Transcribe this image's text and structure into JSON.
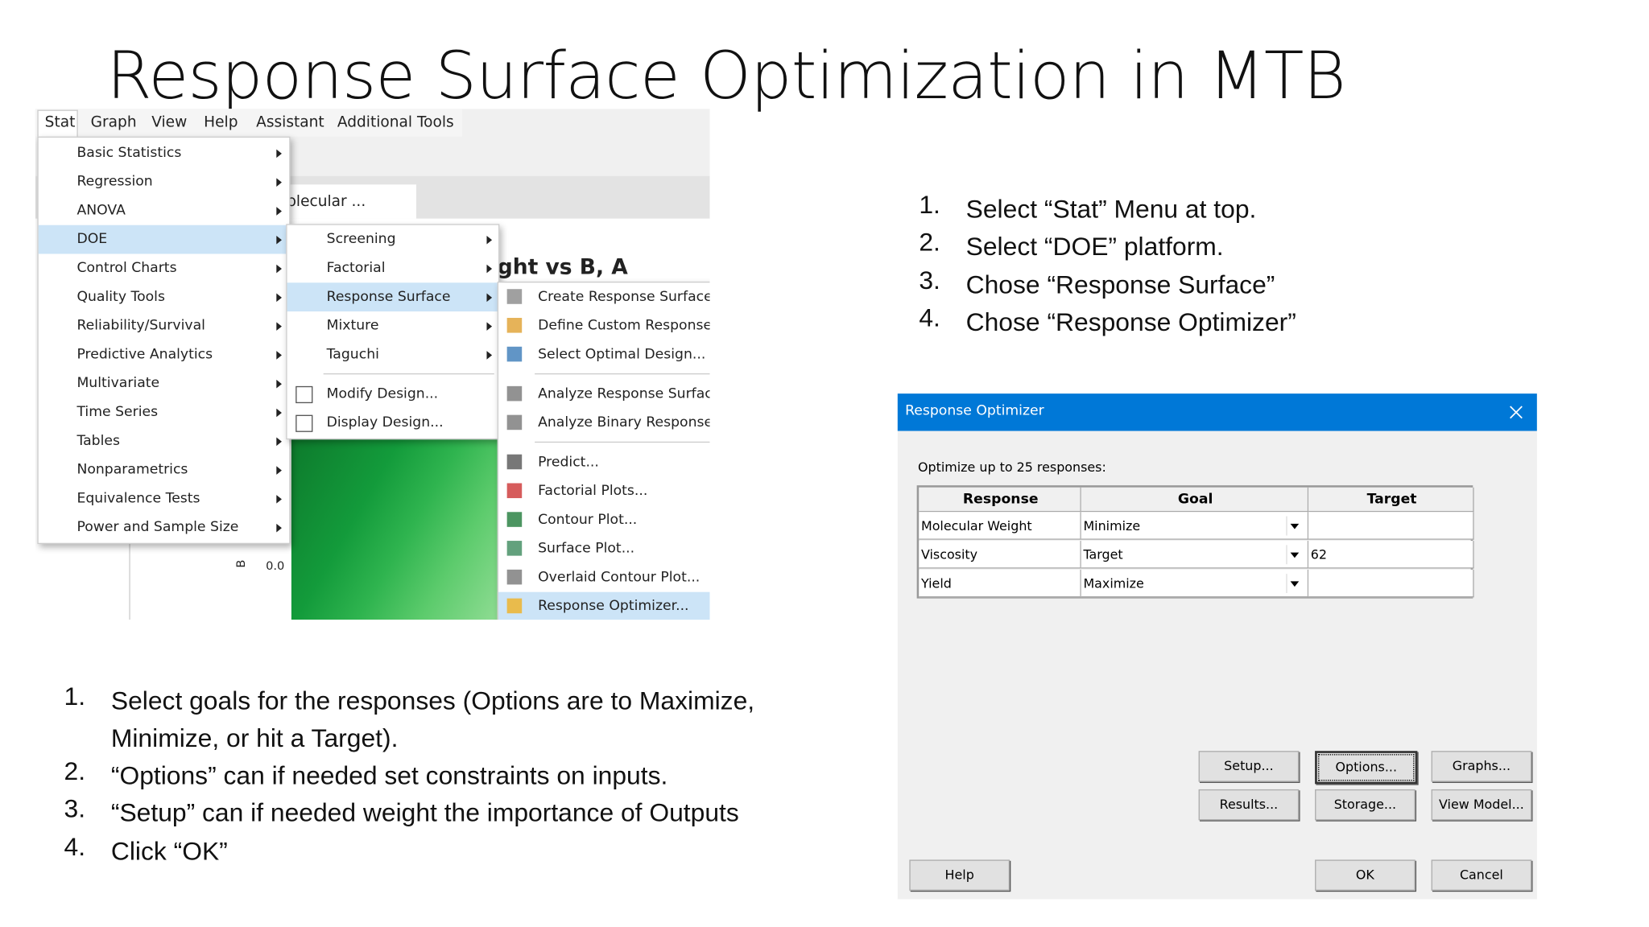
{
  "title": "Response Surface Optimization in MTB",
  "menu_screenshot": {
    "menubar": [
      "Stat",
      "Graph",
      "View",
      "Help",
      "Assistant",
      "Additional Tools"
    ],
    "stat_menu": [
      "Basic Statistics",
      "Regression",
      "ANOVA",
      "DOE",
      "Control Charts",
      "Quality Tools",
      "Reliability/Survival",
      "Predictive Analytics",
      "Multivariate",
      "Time Series",
      "Tables",
      "Nonparametrics",
      "Equivalence Tests",
      "Power and Sample Size"
    ],
    "doe_menu": [
      "Screening",
      "Factorial",
      "Response Surface",
      "Mixture",
      "Taguchi",
      "Modify Design...",
      "Display Design..."
    ],
    "response_surface_menu": [
      "Create Response Surface",
      "Define Custom Response",
      "Select Optimal Design...",
      "Analyze Response Surfac",
      "Analyze Binary Response",
      "Predict...",
      "Factorial Plots...",
      "Contour Plot...",
      "Surface Plot...",
      "Overlaid Contour Plot...",
      "Response Optimizer..."
    ],
    "tab_label": "olecular ...",
    "graph_title": "ght vs B, A",
    "axis_label": "B",
    "axis_value": "0.0"
  },
  "steps_top": [
    {
      "number": "1.",
      "text": "Select “Stat” Menu at top."
    },
    {
      "number": "2.",
      "text": "Select “DOE” platform."
    },
    {
      "number": "3.",
      "text": "Chose “Response Surface”"
    },
    {
      "number": "4.",
      "text": "Chose “Response Optimizer”"
    }
  ],
  "dialog": {
    "title": "Response Optimizer",
    "prompt": "Optimize up to 25 responses:",
    "table": {
      "header": [
        "Response",
        "Goal",
        "Target"
      ],
      "rows": [
        {
          "response": "Molecular Weight",
          "goal": "Minimize"
        },
        {
          "response": "Viscosity",
          "goal": "Target",
          "target": "62"
        },
        {
          "response": "Yield",
          "goal": "Maximize"
        }
      ]
    },
    "buttons": [
      "Setup...",
      "Options...",
      "Graphs...",
      "Results...",
      "Storage...",
      "View Model..."
    ],
    "footer_buttons": [
      "Help",
      "OK",
      "Cancel"
    ]
  },
  "steps_bottom": [
    {
      "number": "1.",
      "text": "Select goals for the responses (Options are to Maximize, Minimize, or hit a Target)."
    },
    {
      "number": "2.",
      "text": "“Options” can if needed set constraints on inputs."
    },
    {
      "number": "3.",
      "text": "“Setup” can if needed weight the importance of Outputs"
    },
    {
      "number": "4.",
      "text": "Click “OK”"
    }
  ]
}
